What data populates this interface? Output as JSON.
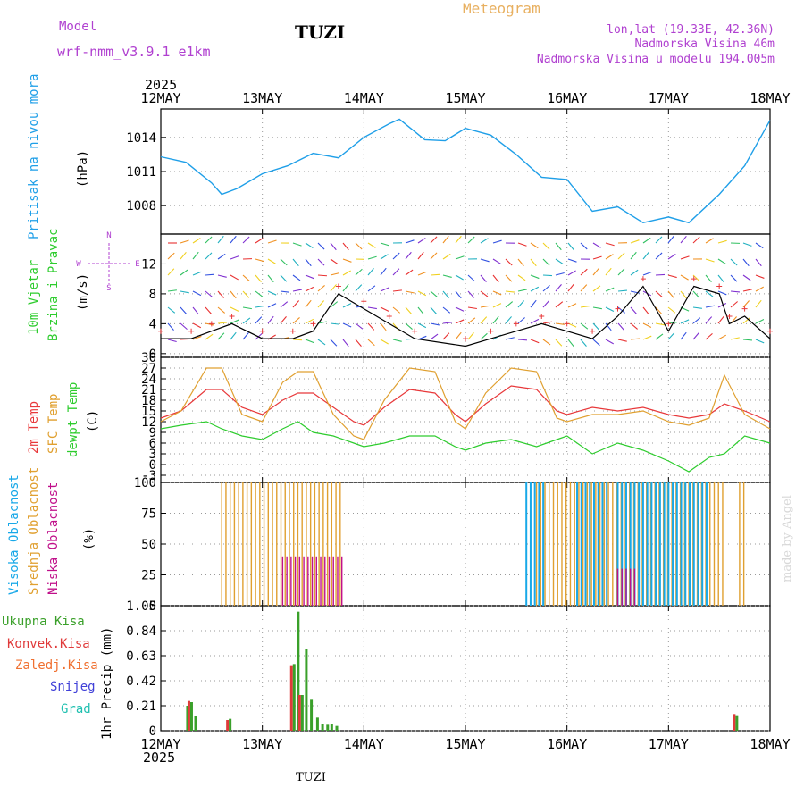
{
  "header": {
    "model_label": "Model",
    "model_name": "wrf-nmm_v3.9.1 e1km",
    "station": "TUZI",
    "meteogram": "Meteogram",
    "lonlat": "lon,lat (19.33E, 42.36N)",
    "elevation": "Nadmorska Visina 46m",
    "model_elevation": "Nadmorska Visina u modelu 194.005m",
    "year": "2025",
    "footer_station": "TUZI",
    "credit": "made by Angel"
  },
  "colors": {
    "pressure": "#1f9fe8",
    "temp2m": "#e8383a",
    "sfc": "#e0a030",
    "dewpt": "#2ecc2e",
    "high": "#18a8e8",
    "mid": "#e0a030",
    "low": "#c0108a",
    "precip_total": "#3aa02a",
    "precip_conv": "#e03a3a",
    "purple": "#b040d0"
  },
  "time_axis": {
    "tick_labels": [
      "12MAY",
      "13MAY",
      "14MAY",
      "15MAY",
      "16MAY",
      "17MAY",
      "18MAY"
    ]
  },
  "panels": {
    "pressure": {
      "ylabel_main": "Pritisak na nivou mora",
      "unit": "(hPa)"
    },
    "wind": {
      "ylabel_1": "10m Vjetar",
      "ylabel_2": "Brzina i Pravac",
      "unit": "(m/s)",
      "compass_n": "N",
      "compass_s": "S",
      "compass_w": "W",
      "compass_e": "E"
    },
    "temp": {
      "ylabel_1": "2m Temp",
      "ylabel_2": "SFC Temp",
      "ylabel_3": "dewpt Temp",
      "unit": "(C)"
    },
    "cloud": {
      "ylabel_1": "Visoka Oblacnost",
      "ylabel_2": "Srednja Oblacnost",
      "ylabel_3": "Niska Oblacnost",
      "unit": "(%)"
    },
    "precip": {
      "legend_total": "Ukupna Kisa",
      "legend_conv": "Konvek.Kisa",
      "legend_frozen": "Zaledj.Kisa",
      "legend_snow": "Snijeg",
      "legend_grad": "Grad",
      "ylabel": "1hr Precip (mm)"
    }
  },
  "chart_data": [
    {
      "type": "line",
      "title": "",
      "ylabel": "Pritisak na nivou mora (hPa)",
      "x_days": [
        0,
        0.25,
        0.5,
        0.6,
        0.75,
        1,
        1.25,
        1.5,
        1.75,
        2,
        2.25,
        2.35,
        2.6,
        2.8,
        3,
        3.25,
        3.5,
        3.75,
        4,
        4.25,
        4.5,
        4.75,
        5,
        5.2,
        5.5,
        5.75,
        6
      ],
      "ylim": [
        1005.5,
        1016.5
      ],
      "yticks": [
        1008,
        1011,
        1014
      ],
      "series": [
        {
          "values": [
            1012.3,
            1011.8,
            1010,
            1009,
            1009.5,
            1010.8,
            1011.5,
            1012.6,
            1012.2,
            1014,
            1015.2,
            1015.6,
            1013.8,
            1013.7,
            1014.8,
            1014.2,
            1012.5,
            1010.5,
            1010.3,
            1007.5,
            1007.9,
            1006.5,
            1007,
            1006.5,
            1009,
            1011.5,
            1015.5
          ]
        }
      ]
    },
    {
      "type": "line",
      "title": "",
      "ylabel": "10m Vjetar Brzina i Pravac (m/s)",
      "x_days": [
        0,
        0.3,
        0.5,
        0.7,
        1,
        1.3,
        1.5,
        1.75,
        2,
        2.25,
        2.5,
        3,
        3.25,
        3.5,
        3.75,
        4,
        4.25,
        4.5,
        4.75,
        5,
        5.25,
        5.5,
        5.6,
        5.75,
        6
      ],
      "ylim": [
        -0.5,
        16
      ],
      "yticks": [
        0,
        4,
        8,
        12
      ],
      "series": [
        {
          "values": [
            2,
            2,
            3,
            4,
            2,
            2,
            3,
            8,
            6,
            4,
            2,
            1,
            2,
            3,
            4,
            3,
            2,
            5,
            9,
            3,
            9,
            8,
            4,
            5,
            2
          ]
        }
      ]
    },
    {
      "type": "line",
      "title": "",
      "ylabel": "2m Temp / SFC Temp / dewpt Temp (C)",
      "x_days": [
        0,
        0.2,
        0.45,
        0.6,
        0.8,
        1,
        1.2,
        1.35,
        1.5,
        1.7,
        1.9,
        2,
        2.2,
        2.45,
        2.7,
        2.9,
        3,
        3.2,
        3.45,
        3.7,
        3.9,
        4,
        4.25,
        4.5,
        4.75,
        5,
        5.2,
        5.4,
        5.55,
        5.75,
        6
      ],
      "ylim": [
        -5,
        30
      ],
      "yticks": [
        -3,
        0,
        3,
        6,
        9,
        12,
        15,
        18,
        21,
        24,
        27,
        30
      ],
      "series": [
        {
          "name": "2m Temp",
          "values": [
            13,
            15,
            21,
            21,
            16,
            14,
            18,
            20,
            20,
            16,
            12,
            11,
            16,
            21,
            20,
            14,
            12,
            17,
            22,
            21,
            15,
            14,
            16,
            15,
            16,
            14,
            13,
            14,
            17,
            15,
            12
          ]
        },
        {
          "name": "SFC Temp",
          "values": [
            12,
            15,
            27,
            27,
            14,
            12,
            23,
            26,
            26,
            14,
            8,
            7,
            18,
            27,
            26,
            12,
            10,
            20,
            27,
            26,
            13,
            12,
            14,
            14,
            15,
            12,
            11,
            13,
            25,
            14,
            10
          ]
        },
        {
          "name": "dewpt Temp",
          "values": [
            10,
            11,
            12,
            10,
            8,
            7,
            10,
            12,
            9,
            8,
            6,
            5,
            6,
            8,
            8,
            5,
            4,
            6,
            7,
            5,
            7,
            8,
            3,
            6,
            4,
            1,
            -2,
            2,
            3,
            8,
            6
          ]
        }
      ]
    },
    {
      "type": "bar",
      "title": "",
      "ylabel": "Oblacnost (%)",
      "ylim": [
        0,
        100
      ],
      "yticks": [
        0,
        25,
        50,
        75,
        100
      ],
      "series": [
        {
          "name": "Srednja Oblacnost",
          "blocks": [
            [
              0.6,
              1.8,
              100
            ],
            [
              3.7,
              5.55,
              100
            ],
            [
              5.7,
              5.75,
              100
            ]
          ]
        },
        {
          "name": "Visoka Oblacnost",
          "blocks": [
            [
              3.6,
              3.8,
              100
            ],
            [
              4.1,
              4.4,
              100
            ],
            [
              4.5,
              5.4,
              100
            ]
          ]
        },
        {
          "name": "Niska Oblacnost",
          "blocks": [
            [
              1.2,
              1.8,
              40
            ],
            [
              4.5,
              4.7,
              30
            ]
          ]
        }
      ]
    },
    {
      "type": "bar",
      "title": "",
      "ylabel": "1hr Precip (mm)",
      "ylim": [
        0,
        1.05
      ],
      "yticks": [
        0,
        0.21,
        0.42,
        0.63,
        0.84,
        1.05
      ],
      "x_days": [
        0.25,
        0.29,
        0.33,
        0.67,
        1.3,
        1.34,
        1.38,
        1.42,
        1.47,
        1.53,
        1.58,
        1.63,
        1.67,
        1.72,
        5.66
      ],
      "series": [
        {
          "name": "Ukupna Kisa",
          "values": [
            0.21,
            0.24,
            0.12,
            0.1,
            0.56,
            1.0,
            0.3,
            0.69,
            0.26,
            0.11,
            0.06,
            0.05,
            0.06,
            0.04,
            0.13
          ]
        },
        {
          "name": "Konvek.Kisa",
          "values": [
            0,
            0.25,
            0,
            0.09,
            0.55,
            0,
            0.3,
            0,
            0,
            0,
            0,
            0,
            0,
            0,
            0.14
          ]
        }
      ]
    }
  ]
}
